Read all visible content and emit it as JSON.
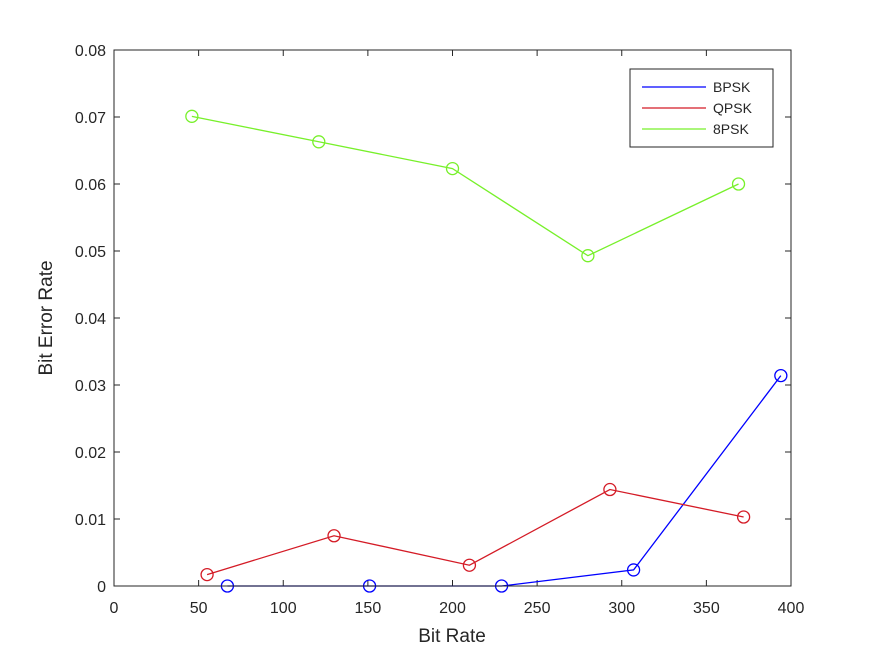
{
  "chart_data": {
    "type": "line",
    "title": "",
    "xlabel": "Bit Rate",
    "ylabel": "Bit Error Rate",
    "xlim": [
      0,
      400
    ],
    "ylim": [
      0,
      0.08
    ],
    "xticks": [
      0,
      50,
      100,
      150,
      200,
      250,
      300,
      350,
      400
    ],
    "yticks": [
      0,
      0.01,
      0.02,
      0.03,
      0.04,
      0.05,
      0.06,
      0.07,
      0.08
    ],
    "xtick_labels": [
      "0",
      "50",
      "100",
      "150",
      "200",
      "250",
      "300",
      "350",
      "400"
    ],
    "ytick_labels": [
      "0",
      "0.01",
      "0.02",
      "0.03",
      "0.04",
      "0.05",
      "0.06",
      "0.07",
      "0.08"
    ],
    "grid": false,
    "legend_position": "top-right",
    "marker": "circle",
    "series": [
      {
        "name": "BPSK",
        "color": "#0000ff",
        "x": [
          67,
          151,
          229,
          307,
          394
        ],
        "y": [
          0.0,
          0.0,
          0.0,
          0.0024,
          0.0314
        ]
      },
      {
        "name": "QPSK",
        "color": "#d41b26",
        "x": [
          55,
          130,
          210,
          293,
          372
        ],
        "y": [
          0.0017,
          0.0075,
          0.0031,
          0.0144,
          0.0103
        ]
      },
      {
        "name": "8PSK",
        "color": "#77f02a",
        "x": [
          46,
          121,
          200,
          280,
          369
        ],
        "y": [
          0.0701,
          0.0663,
          0.0623,
          0.0493,
          0.06
        ]
      }
    ]
  }
}
